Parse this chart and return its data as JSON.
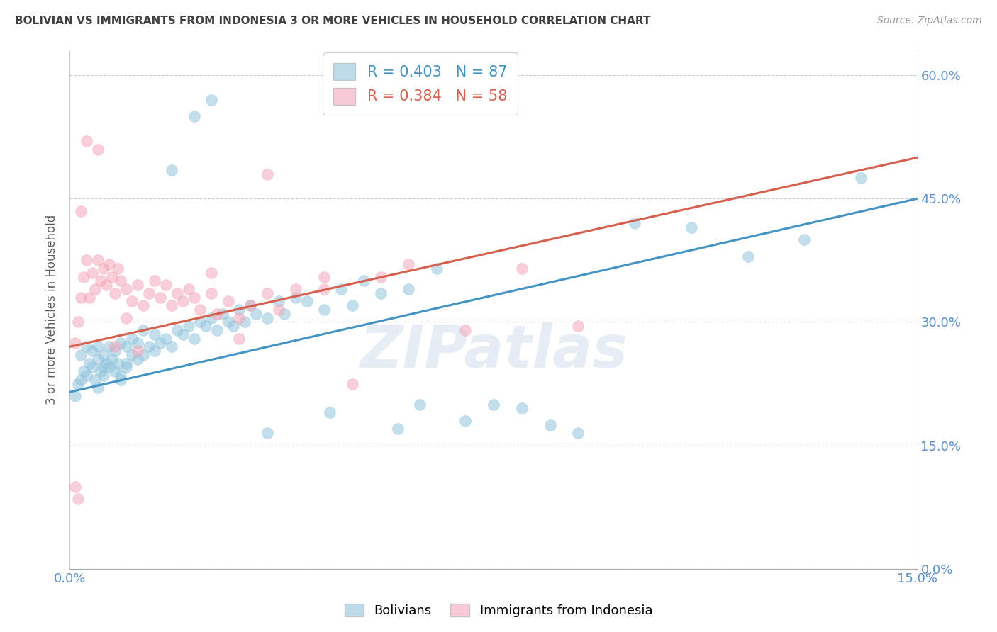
{
  "title": "BOLIVIAN VS IMMIGRANTS FROM INDONESIA 3 OR MORE VEHICLES IN HOUSEHOLD CORRELATION CHART",
  "source": "Source: ZipAtlas.com",
  "ylabel": "3 or more Vehicles in Household",
  "xlim": [
    0.0,
    15.0
  ],
  "ylim": [
    0.0,
    63.0
  ],
  "ytick_labels": [
    "0.0%",
    "15.0%",
    "30.0%",
    "45.0%",
    "60.0%"
  ],
  "ytick_values": [
    0.0,
    15.0,
    30.0,
    45.0,
    60.0
  ],
  "xtick_labels": [
    "0.0%",
    "15.0%"
  ],
  "xtick_values": [
    0.0,
    15.0
  ],
  "blue_R": 0.403,
  "blue_N": 87,
  "pink_R": 0.384,
  "pink_N": 58,
  "legend_label_blue": "Bolivians",
  "legend_label_pink": "Immigrants from Indonesia",
  "blue_color": "#92c5de",
  "pink_color": "#f4a7b9",
  "blue_line_color": "#4393c3",
  "pink_line_color": "#d6604d",
  "title_color": "#404040",
  "axis_label_color": "#606060",
  "tick_label_color": "#5b8fc9",
  "watermark": "ZIPatlas",
  "blue_reg_x0": 0.0,
  "blue_reg_y0": 21.5,
  "blue_reg_x1": 15.0,
  "blue_reg_y1": 45.0,
  "pink_reg_x0": 0.0,
  "pink_reg_y0": 27.0,
  "pink_reg_x1": 15.0,
  "pink_reg_y1": 50.0,
  "blue_scatter_x": [
    0.1,
    0.15,
    0.2,
    0.2,
    0.25,
    0.3,
    0.3,
    0.35,
    0.4,
    0.4,
    0.45,
    0.5,
    0.5,
    0.5,
    0.55,
    0.6,
    0.6,
    0.65,
    0.7,
    0.7,
    0.75,
    0.8,
    0.8,
    0.85,
    0.9,
    0.9,
    1.0,
    1.0,
    1.0,
    1.1,
    1.1,
    1.2,
    1.2,
    1.3,
    1.3,
    1.4,
    1.5,
    1.5,
    1.6,
    1.7,
    1.8,
    1.9,
    2.0,
    2.1,
    2.2,
    2.3,
    2.4,
    2.5,
    2.6,
    2.7,
    2.8,
    2.9,
    3.0,
    3.1,
    3.2,
    3.3,
    3.5,
    3.7,
    3.8,
    4.0,
    4.2,
    4.5,
    4.8,
    5.0,
    5.2,
    5.5,
    6.0,
    6.5,
    7.0,
    7.5,
    8.0,
    8.5,
    9.0,
    10.0,
    11.0,
    12.0,
    13.0,
    14.0,
    3.5,
    4.6,
    5.8,
    6.2,
    2.5,
    2.2,
    1.8,
    0.9,
    0.6
  ],
  "blue_scatter_y": [
    21.0,
    22.5,
    23.0,
    26.0,
    24.0,
    23.5,
    27.0,
    25.0,
    24.5,
    26.5,
    23.0,
    25.5,
    27.0,
    22.0,
    24.0,
    26.0,
    23.5,
    25.0,
    24.5,
    27.0,
    25.5,
    24.0,
    26.5,
    25.0,
    23.5,
    27.5,
    25.0,
    27.0,
    24.5,
    26.0,
    28.0,
    25.5,
    27.5,
    26.0,
    29.0,
    27.0,
    28.5,
    26.5,
    27.5,
    28.0,
    27.0,
    29.0,
    28.5,
    29.5,
    28.0,
    30.0,
    29.5,
    30.5,
    29.0,
    31.0,
    30.0,
    29.5,
    31.5,
    30.0,
    32.0,
    31.0,
    30.5,
    32.5,
    31.0,
    33.0,
    32.5,
    31.5,
    34.0,
    32.0,
    35.0,
    33.5,
    34.0,
    36.5,
    18.0,
    20.0,
    19.5,
    17.5,
    16.5,
    42.0,
    41.5,
    38.0,
    40.0,
    47.5,
    16.5,
    19.0,
    17.0,
    20.0,
    57.0,
    55.0,
    48.5,
    23.0,
    24.5
  ],
  "pink_scatter_x": [
    0.1,
    0.15,
    0.2,
    0.25,
    0.3,
    0.35,
    0.4,
    0.45,
    0.5,
    0.55,
    0.6,
    0.65,
    0.7,
    0.75,
    0.8,
    0.85,
    0.9,
    1.0,
    1.0,
    1.1,
    1.2,
    1.3,
    1.4,
    1.5,
    1.6,
    1.7,
    1.8,
    1.9,
    2.0,
    2.1,
    2.2,
    2.3,
    2.5,
    2.6,
    2.8,
    3.0,
    3.2,
    3.5,
    3.7,
    4.0,
    4.5,
    5.0,
    5.5,
    6.0,
    7.0,
    8.0,
    9.0,
    1.2,
    0.8,
    0.5,
    0.3,
    0.2,
    0.15,
    0.1,
    2.5,
    3.0,
    3.5,
    4.5
  ],
  "pink_scatter_y": [
    27.5,
    30.0,
    33.0,
    35.5,
    37.5,
    33.0,
    36.0,
    34.0,
    37.5,
    35.0,
    36.5,
    34.5,
    37.0,
    35.5,
    33.5,
    36.5,
    35.0,
    34.0,
    30.5,
    32.5,
    34.5,
    32.0,
    33.5,
    35.0,
    33.0,
    34.5,
    32.0,
    33.5,
    32.5,
    34.0,
    33.0,
    31.5,
    33.5,
    31.0,
    32.5,
    30.5,
    32.0,
    33.5,
    31.5,
    34.0,
    35.5,
    22.5,
    35.5,
    37.0,
    29.0,
    36.5,
    29.5,
    26.5,
    27.0,
    51.0,
    52.0,
    43.5,
    8.5,
    10.0,
    36.0,
    28.0,
    48.0,
    34.0
  ]
}
